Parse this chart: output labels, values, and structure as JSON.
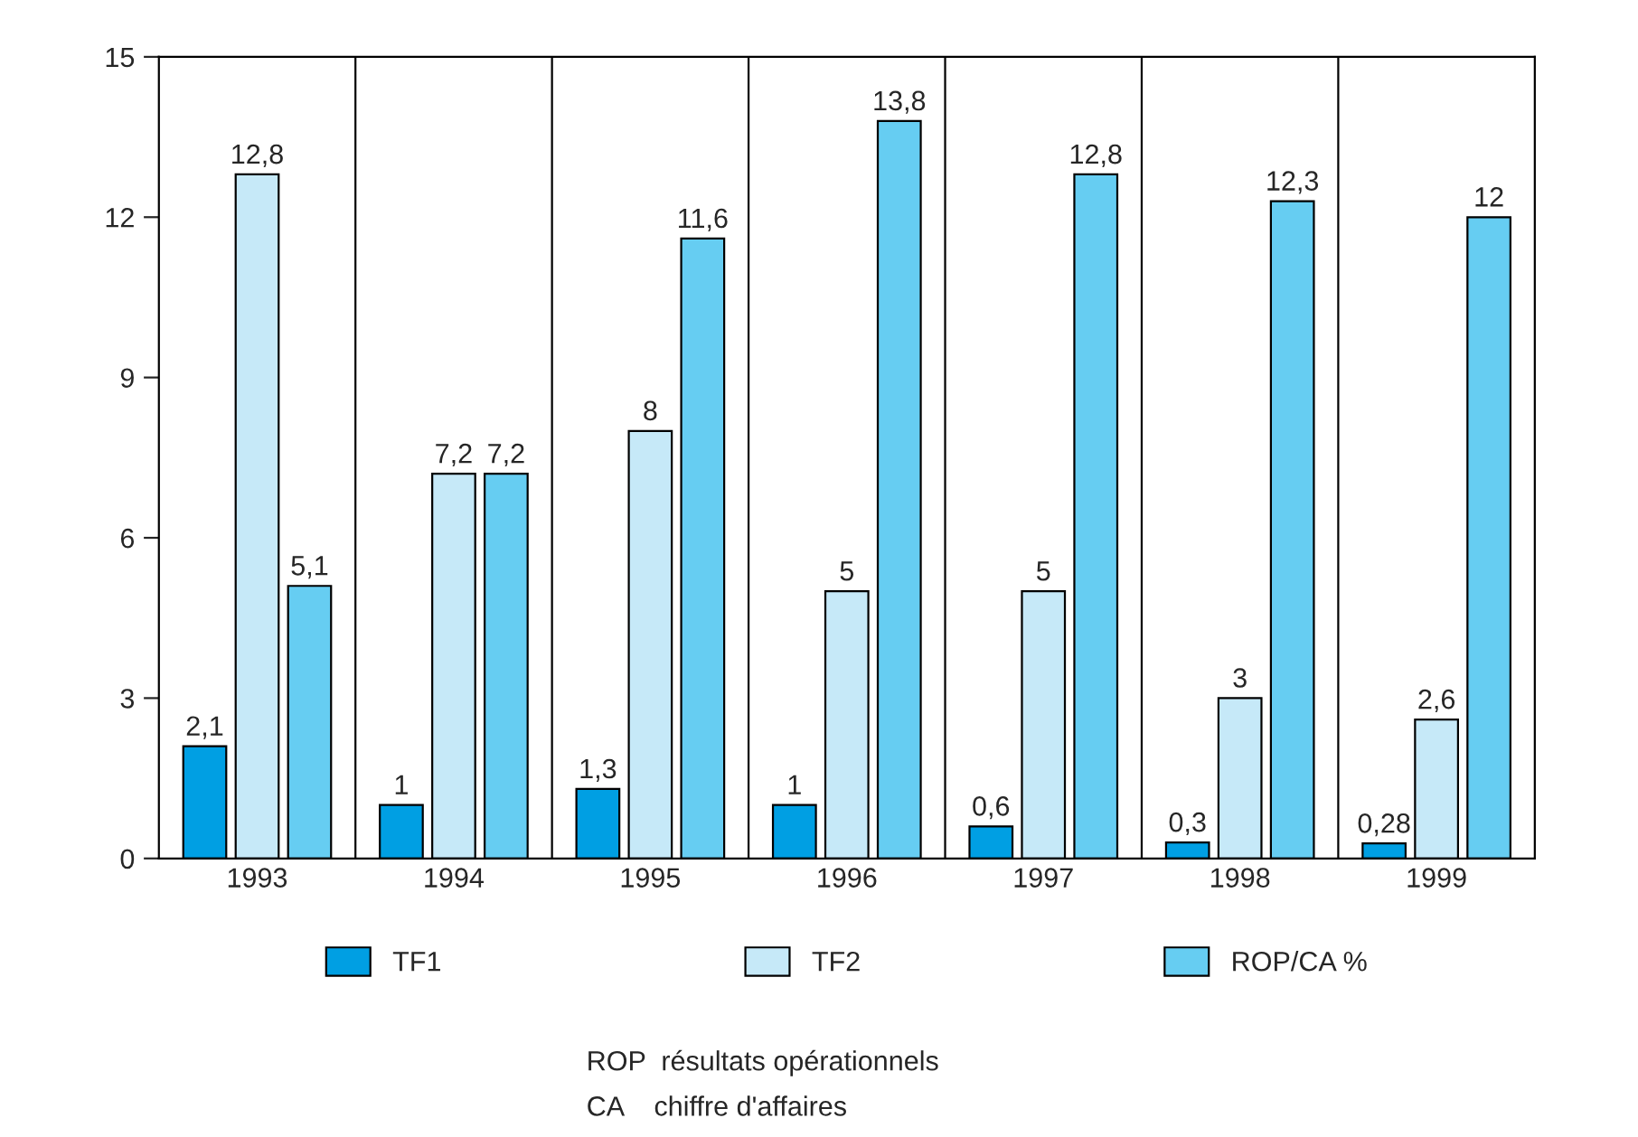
{
  "chart_data": {
    "type": "bar",
    "categories": [
      "1993",
      "1994",
      "1995",
      "1996",
      "1997",
      "1998",
      "1999"
    ],
    "series": [
      {
        "name": "TF1",
        "color": "#009fe3",
        "values": [
          2.1,
          1,
          1.3,
          1,
          0.6,
          0.3,
          0.28
        ],
        "value_labels": [
          "2,1",
          "1",
          "1,3",
          "1",
          "0,6",
          "0,3",
          "0,28"
        ]
      },
      {
        "name": "TF2",
        "color": "#c6e9f8",
        "values": [
          12.8,
          7.2,
          8,
          5,
          5,
          3,
          2.6
        ],
        "value_labels": [
          "12,8",
          "7,2",
          "8",
          "5",
          "5",
          "3",
          "2,6"
        ]
      },
      {
        "name": "ROP/CA %",
        "color": "#66cdf2",
        "values": [
          5.1,
          7.2,
          11.6,
          13.8,
          12.8,
          12.3,
          12
        ],
        "value_labels": [
          "5,1",
          "7,2",
          "11,6",
          "13,8",
          "12,8",
          "12,3",
          "12"
        ]
      }
    ],
    "ylim": [
      0,
      15
    ],
    "yticks": [
      0,
      3,
      6,
      9,
      12,
      15
    ],
    "grid": "x",
    "legend": "bottom",
    "annotations": [
      "ROP  résultats opérationnels",
      "CA    chiffre d'affaires"
    ]
  }
}
